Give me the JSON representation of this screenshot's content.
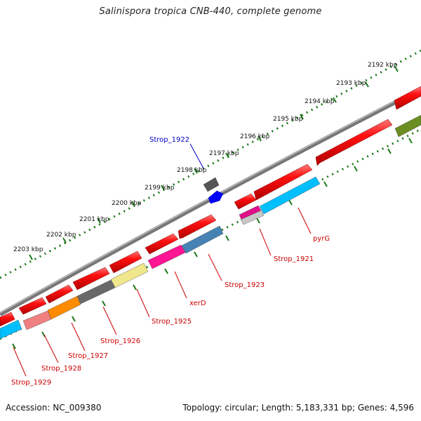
{
  "title": "Salinispora tropica CNB-440, complete genome",
  "accession_label": "Accession: NC_009380",
  "info_label": "Topology: circular; Length: 5,183,331 bp; Genes: 4,596",
  "colors": {
    "label_red": "#cc0000",
    "label_blue": "#0000cc",
    "tick_green": "#1a7a1a",
    "backbone": "#888888"
  },
  "kbp_labels": [
    "2192 kbp",
    "2193 kbp",
    "2194 kbp",
    "2195 kbp",
    "2196 kbp",
    "2197 kbp",
    "2198 kbp",
    "2199 kbp",
    "2200 kbp",
    "2201 kbp",
    "2202 kbp",
    "2203 kbp"
  ],
  "gene_labels": [
    {
      "text": "Strop_1922",
      "color": "blue"
    },
    {
      "text": "pyrG",
      "color": "red"
    },
    {
      "text": "Strop_1921",
      "color": "red"
    },
    {
      "text": "Strop_1923",
      "color": "red"
    },
    {
      "text": "xerD",
      "color": "red"
    },
    {
      "text": "Strop_1925",
      "color": "red"
    },
    {
      "text": "Strop_1926",
      "color": "red"
    },
    {
      "text": "Strop_1927",
      "color": "red"
    },
    {
      "text": "Strop_1928",
      "color": "red"
    },
    {
      "text": "Strop_1929",
      "color": "red"
    }
  ],
  "feature_tracks": [
    {
      "name": "forward-genes",
      "color": "red"
    },
    {
      "name": "reverse-genes",
      "color": "mixed"
    },
    {
      "name": "blue-gene",
      "color": "blue"
    }
  ]
}
